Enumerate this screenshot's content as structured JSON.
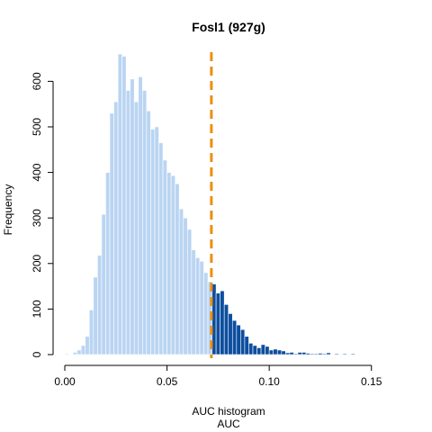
{
  "chart_data": {
    "type": "bar",
    "title": "Fosl1 (927g)",
    "xlabel": "AUC histogram",
    "xsublabel": "AUC",
    "ylabel": "Frequency",
    "xlim": [
      0,
      0.162
    ],
    "ylim": [
      0,
      660
    ],
    "x_ticks": [
      {
        "value": 0.0,
        "label": "0.00"
      },
      {
        "value": 0.05,
        "label": "0.05"
      },
      {
        "value": 0.1,
        "label": "0.10"
      },
      {
        "value": 0.15,
        "label": "0.15"
      }
    ],
    "y_ticks": [
      {
        "value": 0,
        "label": "0"
      },
      {
        "value": 100,
        "label": "100"
      },
      {
        "value": 200,
        "label": "200"
      },
      {
        "value": 300,
        "label": "300"
      },
      {
        "value": 400,
        "label": "400"
      },
      {
        "value": 500,
        "label": "500"
      },
      {
        "value": 600,
        "label": "600"
      }
    ],
    "bin_width": 0.002,
    "threshold": 0.0717,
    "colors": {
      "below_threshold": "#bad5f2",
      "above_threshold": "#0d4e9e",
      "bin_border": "#ffffff",
      "threshold_line": "#ec8f0f"
    },
    "bins": [
      {
        "x": 0.0,
        "y": 2
      },
      {
        "x": 0.002,
        "y": 1
      },
      {
        "x": 0.004,
        "y": 5
      },
      {
        "x": 0.006,
        "y": 10
      },
      {
        "x": 0.008,
        "y": 20
      },
      {
        "x": 0.01,
        "y": 40
      },
      {
        "x": 0.012,
        "y": 98
      },
      {
        "x": 0.014,
        "y": 170
      },
      {
        "x": 0.016,
        "y": 218
      },
      {
        "x": 0.018,
        "y": 308
      },
      {
        "x": 0.02,
        "y": 400
      },
      {
        "x": 0.022,
        "y": 530
      },
      {
        "x": 0.024,
        "y": 555
      },
      {
        "x": 0.026,
        "y": 660
      },
      {
        "x": 0.028,
        "y": 655
      },
      {
        "x": 0.03,
        "y": 580
      },
      {
        "x": 0.032,
        "y": 605
      },
      {
        "x": 0.034,
        "y": 555
      },
      {
        "x": 0.036,
        "y": 610
      },
      {
        "x": 0.038,
        "y": 580
      },
      {
        "x": 0.04,
        "y": 535
      },
      {
        "x": 0.042,
        "y": 495
      },
      {
        "x": 0.044,
        "y": 500
      },
      {
        "x": 0.046,
        "y": 465
      },
      {
        "x": 0.048,
        "y": 427
      },
      {
        "x": 0.05,
        "y": 400
      },
      {
        "x": 0.052,
        "y": 393
      },
      {
        "x": 0.054,
        "y": 375
      },
      {
        "x": 0.056,
        "y": 320
      },
      {
        "x": 0.058,
        "y": 300
      },
      {
        "x": 0.06,
        "y": 275
      },
      {
        "x": 0.062,
        "y": 230
      },
      {
        "x": 0.064,
        "y": 213
      },
      {
        "x": 0.066,
        "y": 205
      },
      {
        "x": 0.068,
        "y": 180
      },
      {
        "x": 0.07,
        "y": 160
      },
      {
        "x": 0.072,
        "y": 155
      },
      {
        "x": 0.074,
        "y": 135
      },
      {
        "x": 0.076,
        "y": 140
      },
      {
        "x": 0.078,
        "y": 110
      },
      {
        "x": 0.08,
        "y": 90
      },
      {
        "x": 0.082,
        "y": 75
      },
      {
        "x": 0.084,
        "y": 65
      },
      {
        "x": 0.086,
        "y": 55
      },
      {
        "x": 0.088,
        "y": 40
      },
      {
        "x": 0.09,
        "y": 25
      },
      {
        "x": 0.092,
        "y": 20
      },
      {
        "x": 0.094,
        "y": 15
      },
      {
        "x": 0.096,
        "y": 22
      },
      {
        "x": 0.098,
        "y": 18
      },
      {
        "x": 0.1,
        "y": 10
      },
      {
        "x": 0.102,
        "y": 12
      },
      {
        "x": 0.104,
        "y": 10
      },
      {
        "x": 0.106,
        "y": 8
      },
      {
        "x": 0.108,
        "y": 4
      },
      {
        "x": 0.11,
        "y": 5
      },
      {
        "x": 0.112,
        "y": 2
      },
      {
        "x": 0.114,
        "y": 5
      },
      {
        "x": 0.116,
        "y": 5
      },
      {
        "x": 0.118,
        "y": 3
      },
      {
        "x": 0.12,
        "y": 2
      },
      {
        "x": 0.122,
        "y": 2
      },
      {
        "x": 0.124,
        "y": 3
      },
      {
        "x": 0.126,
        "y": 2
      },
      {
        "x": 0.128,
        "y": 4
      },
      {
        "x": 0.13,
        "y": 1
      },
      {
        "x": 0.132,
        "y": 2
      },
      {
        "x": 0.134,
        "y": 1
      },
      {
        "x": 0.136,
        "y": 2
      },
      {
        "x": 0.138,
        "y": 1
      },
      {
        "x": 0.14,
        "y": 2
      },
      {
        "x": 0.142,
        "y": 1
      },
      {
        "x": 0.144,
        "y": 1
      },
      {
        "x": 0.146,
        "y": 1
      },
      {
        "x": 0.148,
        "y": 1
      },
      {
        "x": 0.15,
        "y": 1
      },
      {
        "x": 0.152,
        "y": 1
      },
      {
        "x": 0.154,
        "y": 1
      },
      {
        "x": 0.156,
        "y": 1
      },
      {
        "x": 0.158,
        "y": 1
      },
      {
        "x": 0.16,
        "y": 1
      }
    ]
  }
}
